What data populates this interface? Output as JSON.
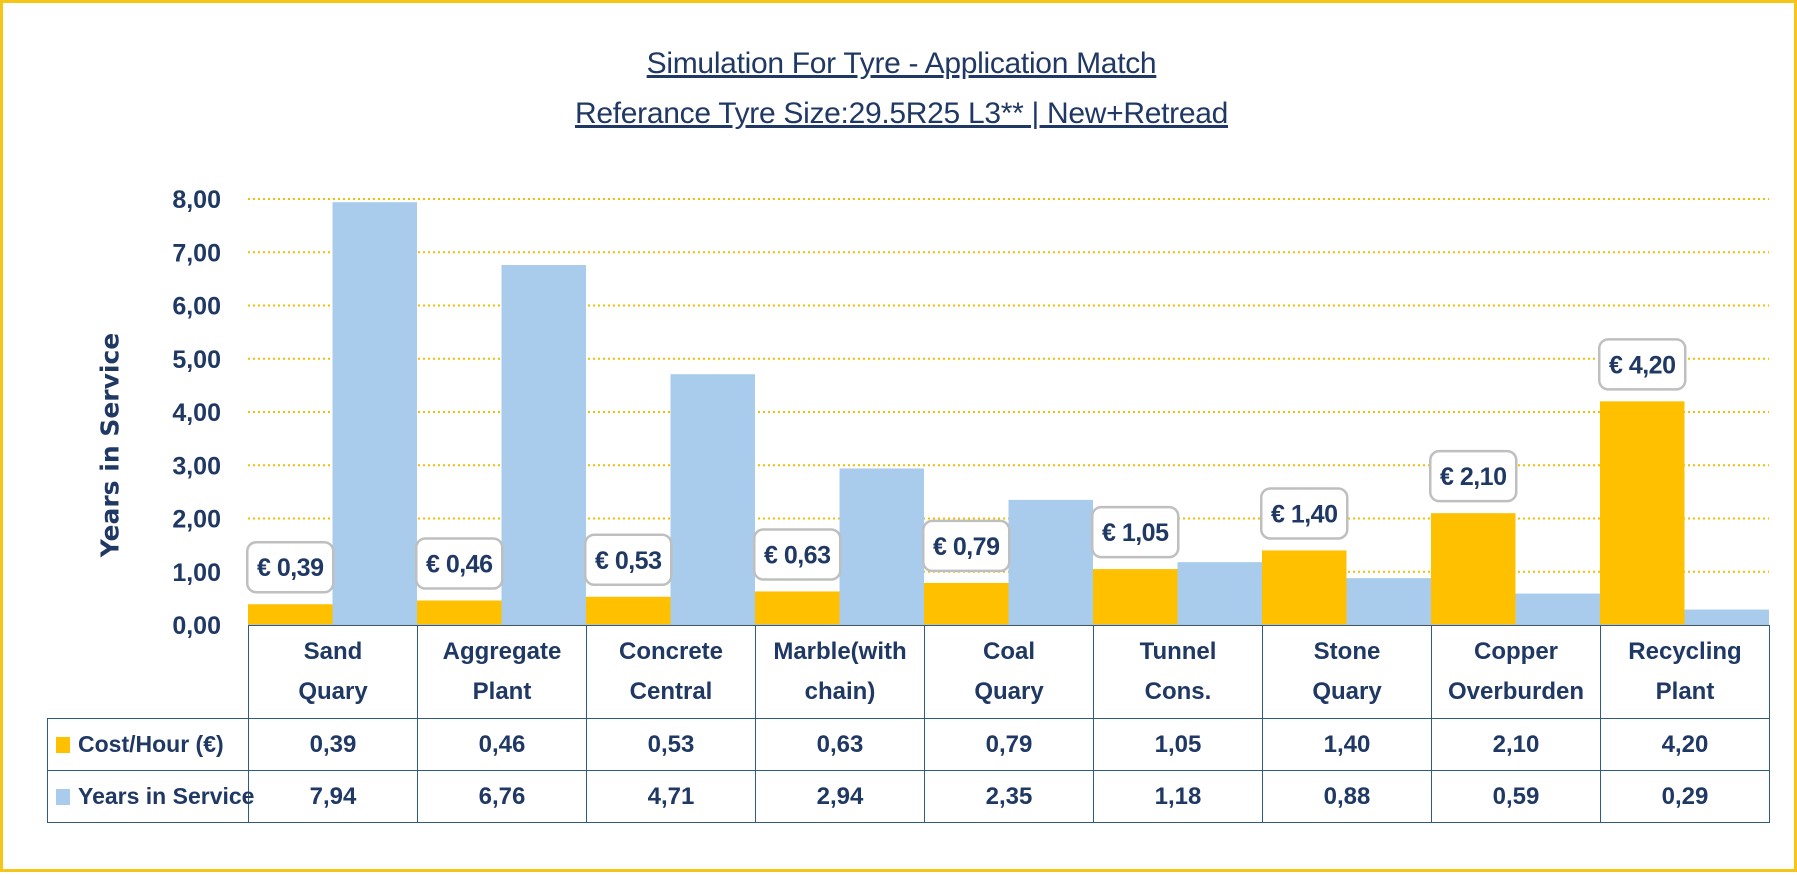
{
  "colors": {
    "cost": "#FFC000",
    "years": "#A9CBEC",
    "frame": "#F5C518",
    "text": "#1F3864",
    "grid": "#F0C000"
  },
  "chart_data": {
    "type": "bar",
    "title": "Simulation For Tyre - Application Match",
    "subtitle": "Referance Tyre Size:29.5R25 L3** | New+Retread",
    "ylabel": "Years in Service",
    "ylim": [
      0,
      8
    ],
    "yticks": [
      "0,00",
      "1,00",
      "2,00",
      "3,00",
      "4,00",
      "5,00",
      "6,00",
      "7,00",
      "8,00"
    ],
    "grid": true,
    "categories": [
      [
        "Sand",
        "Quary"
      ],
      [
        "Aggregate",
        "Plant"
      ],
      [
        "Concrete",
        "Central"
      ],
      [
        "Marble(with",
        "chain)"
      ],
      [
        "Coal",
        "Quary"
      ],
      [
        "Tunnel",
        "Cons."
      ],
      [
        "Stone",
        "Quary"
      ],
      [
        "Copper",
        "Overburden"
      ],
      [
        "Recycling",
        "Plant"
      ]
    ],
    "series": [
      {
        "name": "Cost/Hour (€)",
        "values": [
          0.39,
          0.46,
          0.53,
          0.63,
          0.79,
          1.05,
          1.4,
          2.1,
          4.2
        ],
        "display": [
          "0,39",
          "0,46",
          "0,53",
          "0,63",
          "0,79",
          "1,05",
          "1,40",
          "2,10",
          "4,20"
        ],
        "labels": [
          "€ 0,39",
          "€ 0,46",
          "€ 0,53",
          "€ 0,63",
          "€ 0,79",
          "€ 1,05",
          "€ 1,40",
          "€ 2,10",
          "€ 4,20"
        ]
      },
      {
        "name": "Years in Service",
        "values": [
          7.94,
          6.76,
          4.71,
          2.94,
          2.35,
          1.18,
          0.88,
          0.59,
          0.29
        ],
        "display": [
          "7,94",
          "6,76",
          "4,71",
          "2,94",
          "2,35",
          "1,18",
          "0,88",
          "0,59",
          "0,29"
        ]
      }
    ]
  }
}
